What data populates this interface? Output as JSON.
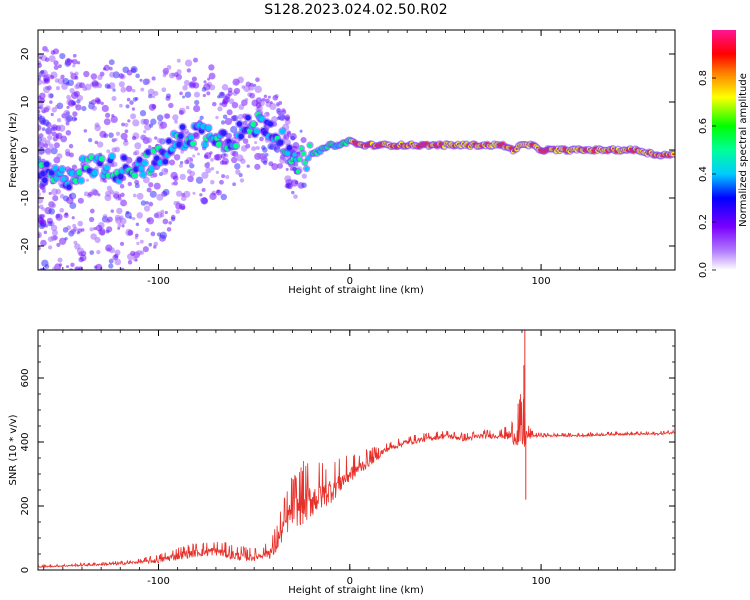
{
  "title": "S128.2023.024.02.50.R02",
  "chart_data": [
    {
      "type": "heatmap",
      "xlabel": "Height of straight line (km)",
      "ylabel": "Frequency (Hz)",
      "xlim": [
        -163,
        170
      ],
      "ylim": [
        -25,
        25
      ],
      "xticks": [
        -100,
        0,
        100
      ],
      "yticks": [
        -20,
        -10,
        0,
        10,
        20
      ],
      "ridge": {
        "x": [
          -163,
          -150,
          -140,
          -130,
          -120,
          -110,
          -100,
          -95,
          -90,
          -85,
          -80,
          -75,
          -70,
          -65,
          -60,
          -55,
          -50,
          -45,
          -40,
          -35,
          -32,
          -30,
          -28,
          -25,
          -20,
          -15,
          -10,
          -5,
          0,
          5,
          10,
          20,
          40,
          60,
          75,
          80,
          85,
          90,
          95,
          100,
          110,
          120,
          130,
          140,
          150,
          160,
          170
        ],
        "y": [
          -5,
          -6,
          -4,
          -3,
          -4,
          -3,
          -2,
          0,
          2,
          3,
          4,
          3,
          4,
          2,
          3,
          4,
          5,
          6,
          4,
          3,
          -1,
          -4,
          -3,
          -2,
          -1,
          0,
          1,
          1,
          2,
          1,
          1,
          1,
          1,
          1,
          1,
          1,
          0,
          1,
          1,
          0,
          0,
          0,
          0,
          0,
          0,
          -1,
          -1
        ]
      },
      "colorbar": {
        "label": "Normalized spectral amplitude",
        "range": [
          0,
          1
        ],
        "ticks": [
          "0.0",
          "0.2",
          "0.4",
          "0.6",
          "0.8"
        ],
        "colors": [
          "#ffffff",
          "#7a00ff",
          "#0000ff",
          "#00ffff",
          "#00ff00",
          "#ffff00",
          "#ff0000",
          "#ff1493"
        ]
      }
    },
    {
      "type": "line",
      "xlabel": "Height of straight line (km)",
      "ylabel": "SNR (10 * v/v)",
      "xlim": [
        -163,
        170
      ],
      "ylim": [
        0,
        750
      ],
      "xticks": [
        -100,
        0,
        100
      ],
      "yticks": [
        0,
        200,
        400,
        600
      ],
      "color": "#e8302a",
      "envelope": {
        "x": [
          -163,
          -140,
          -120,
          -100,
          -90,
          -80,
          -70,
          -60,
          -50,
          -40,
          -35,
          -30,
          -25,
          -20,
          -10,
          0,
          10,
          20,
          30,
          40,
          50,
          60,
          70,
          80,
          88,
          92,
          95,
          100,
          120,
          140,
          160,
          170
        ],
        "y": [
          10,
          15,
          20,
          30,
          45,
          55,
          60,
          45,
          40,
          60,
          130,
          190,
          200,
          220,
          250,
          300,
          340,
          380,
          400,
          410,
          420,
          410,
          420,
          420,
          420,
          420,
          420,
          420,
          420,
          425,
          425,
          430
        ]
      },
      "noise": {
        "x": [
          -163,
          -110,
          -90,
          -60,
          -45,
          -35,
          -25,
          -15,
          0,
          20,
          60,
          80,
          87,
          90,
          93,
          96,
          110,
          170
        ],
        "amp": [
          4,
          10,
          30,
          35,
          25,
          90,
          140,
          110,
          60,
          20,
          18,
          20,
          70,
          150,
          40,
          10,
          8,
          8
        ]
      },
      "spikes": [
        {
          "x": 91.5,
          "y": 750
        },
        {
          "x": 92,
          "y": 220
        },
        {
          "x": 91,
          "y": 640
        },
        {
          "x": 88,
          "y": 520
        }
      ]
    }
  ]
}
